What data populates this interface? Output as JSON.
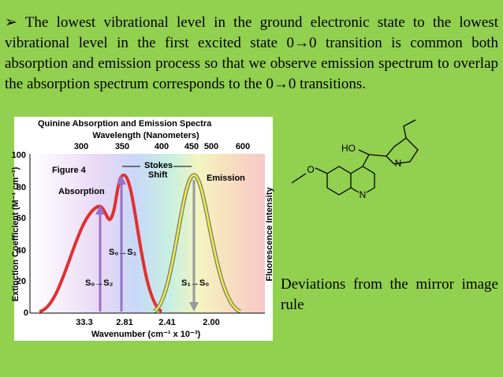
{
  "bullet_text": "➢ The lowest vibrational level in the ground electronic state to the lowest vibrational level  in the first excited state 0→0 transition is common both absorption and emission process so that we observe emission spectrum to overlap the absorption spectrum corresponds to the 0→0 transitions.",
  "figure": {
    "title": "Quinine Absorption and Emission Spectra",
    "top_axis_label": "Wavelength (Nanometers)",
    "top_ticks": [
      "300",
      "350",
      "400",
      "450",
      "500",
      "600"
    ],
    "y_axis_label": "Extinction Coefficient (M⁻¹ cm⁻¹)",
    "y_ticks": [
      "100",
      "80",
      "60",
      "40",
      "20",
      "0"
    ],
    "figure_label": "Figure 4",
    "absorption_label": "Absorption",
    "stokes_shift_label": [
      "Stokes",
      "Shift"
    ],
    "emission_label": "Emission",
    "transitions": [
      "S₀→S₁",
      "S₀→S₂",
      "S₁→S₀"
    ],
    "right_axis_label": "Fluorescence Intensity",
    "bottom_ticks": [
      "33.3",
      "2.81",
      "2.41",
      "2.00"
    ],
    "bottom_axis_label": "Wavenumber (cm⁻¹ x 10⁻³)"
  },
  "molecule": {
    "labels": [
      "HO",
      "N",
      "O",
      "N"
    ]
  },
  "caption": "Deviations from the mirror image rule"
}
